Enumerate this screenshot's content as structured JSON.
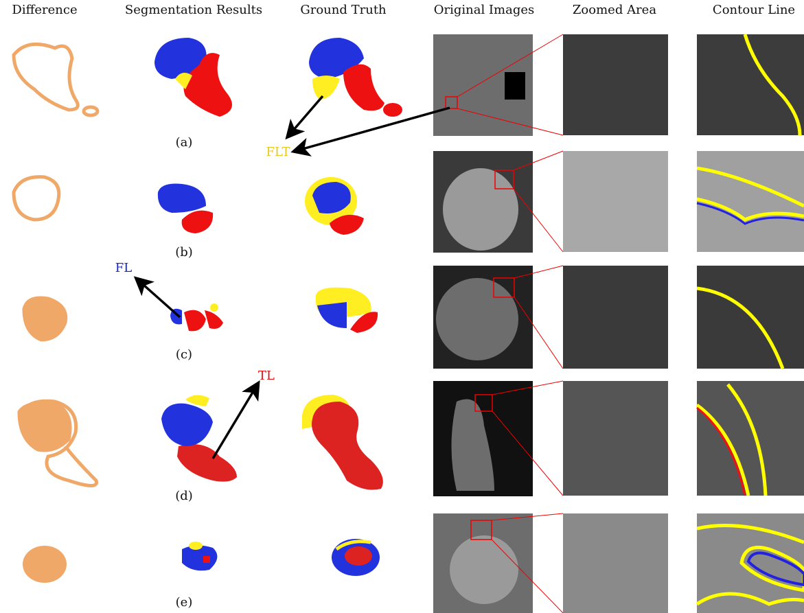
{
  "headers": [
    "Difference",
    "Segmentation Results",
    "Ground Truth",
    "Original Images",
    "Zoomed Area",
    "Contour Line"
  ],
  "row_labels": [
    "(a)",
    "(b)",
    "(c)",
    "(d)",
    "(e)"
  ],
  "annotations": {
    "flt": "FLT",
    "fl": "FL",
    "tl": "TL"
  }
}
